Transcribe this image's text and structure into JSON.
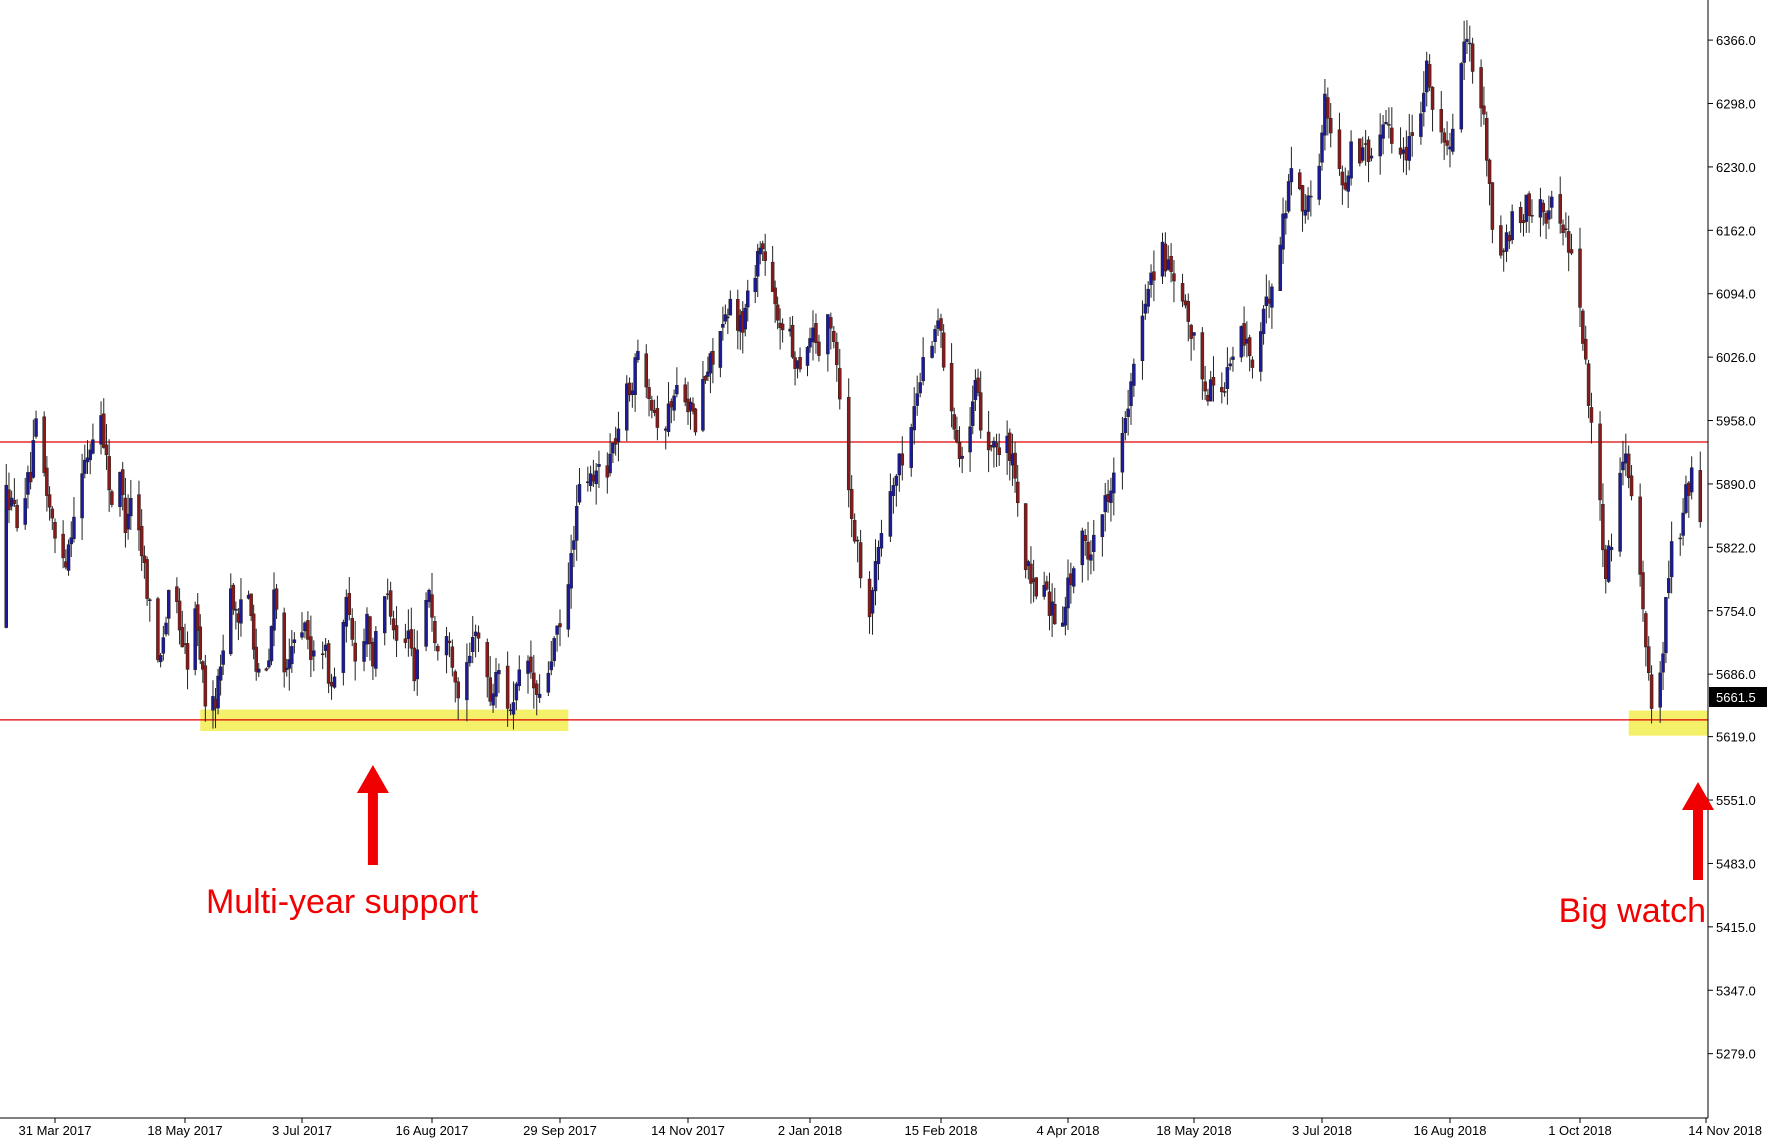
{
  "chart_data": {
    "type": "candlestick",
    "title": "",
    "xlabel": "",
    "ylabel": "",
    "ylim": [
      5210,
      6409
    ],
    "grid": false,
    "y_ticks": [
      "6366.0",
      "6298.0",
      "6230.0",
      "6162.0",
      "6094.0",
      "6026.0",
      "5958.0",
      "5890.0",
      "5822.0",
      "5754.0",
      "5686.0",
      "5619.0",
      "5551.0",
      "5483.0",
      "5415.0",
      "5347.0",
      "5279.0"
    ],
    "x_ticks": [
      "31 Mar 2017",
      "18 May 2017",
      "3 Jul 2017",
      "16 Aug 2017",
      "29 Sep 2017",
      "14 Nov 2017",
      "2 Jan 2018",
      "15 Feb 2018",
      "4 Apr 2018",
      "18 May 2018",
      "3 Jul 2018",
      "16 Aug 2018",
      "1 Oct 2018",
      "14 Nov 2018"
    ],
    "current_price": "5661.5",
    "horizontal_lines": [
      {
        "value": 5935,
        "color": "#e00000"
      },
      {
        "value": 5637,
        "color": "#e00000"
      }
    ],
    "zones": [
      {
        "from_date": "2017-05-24",
        "to_date": "2017-10-02",
        "low": 5625,
        "high": 5648,
        "color": "#f5f06a"
      },
      {
        "from_date": "2018-10-18",
        "to_date": "2018-11-20",
        "low": 5620,
        "high": 5647,
        "color": "#f5f06a"
      }
    ],
    "annotations": [
      {
        "text": "Multi-year support",
        "arrow_date": "2017-07-27",
        "color": "#f00000"
      },
      {
        "text": "Big watch",
        "arrow_date": "2018-11-19",
        "color": "#f00000"
      }
    ],
    "path": [
      [
        "2017-03-01",
        5740
      ],
      [
        "2017-03-06",
        5860
      ],
      [
        "2017-03-09",
        5840
      ],
      [
        "2017-03-13",
        5880
      ],
      [
        "2017-03-17",
        5855
      ],
      [
        "2017-03-22",
        5900
      ],
      [
        "2017-03-24",
        5950
      ],
      [
        "2017-03-27",
        5900
      ],
      [
        "2017-03-31",
        5830
      ],
      [
        "2017-04-04",
        5810
      ],
      [
        "2017-04-07",
        5860
      ],
      [
        "2017-04-11",
        5910
      ],
      [
        "2017-04-13",
        5930
      ],
      [
        "2017-04-17",
        5965
      ],
      [
        "2017-04-19",
        5915
      ],
      [
        "2017-04-21",
        5870
      ],
      [
        "2017-04-24",
        5895
      ],
      [
        "2017-04-26",
        5850
      ],
      [
        "2017-04-28",
        5880
      ],
      [
        "2017-05-01",
        5840
      ],
      [
        "2017-05-03",
        5800
      ],
      [
        "2017-05-05",
        5760
      ],
      [
        "2017-05-08",
        5700
      ],
      [
        "2017-05-11",
        5745
      ],
      [
        "2017-05-13",
        5785
      ],
      [
        "2017-05-15",
        5760
      ],
      [
        "2017-05-17",
        5720
      ],
      [
        "2017-05-19",
        5700
      ],
      [
        "2017-05-22",
        5750
      ],
      [
        "2017-05-24",
        5710
      ],
      [
        "2017-05-26",
        5660
      ],
      [
        "2017-05-29",
        5650
      ],
      [
        "2017-05-31",
        5675
      ],
      [
        "2017-06-02",
        5720
      ],
      [
        "2017-06-05",
        5780
      ],
      [
        "2017-06-08",
        5730
      ],
      [
        "2017-06-10",
        5800
      ],
      [
        "2017-06-13",
        5760
      ],
      [
        "2017-06-15",
        5690
      ],
      [
        "2017-06-18",
        5670
      ],
      [
        "2017-06-20",
        5700
      ],
      [
        "2017-06-22",
        5770
      ],
      [
        "2017-06-25",
        5720
      ],
      [
        "2017-06-27",
        5680
      ],
      [
        "2017-06-29",
        5710
      ],
      [
        "2017-07-01",
        5760
      ],
      [
        "2017-07-04",
        5730
      ],
      [
        "2017-07-06",
        5700
      ],
      [
        "2017-07-08",
        5740
      ],
      [
        "2017-07-11",
        5705
      ],
      [
        "2017-07-13",
        5670
      ],
      [
        "2017-07-15",
        5700
      ],
      [
        "2017-07-18",
        5760
      ],
      [
        "2017-07-20",
        5720
      ],
      [
        "2017-07-22",
        5690
      ],
      [
        "2017-07-25",
        5750
      ],
      [
        "2017-07-27",
        5700
      ],
      [
        "2017-07-29",
        5740
      ],
      [
        "2017-08-01",
        5780
      ],
      [
        "2017-08-03",
        5740
      ],
      [
        "2017-08-05",
        5700
      ],
      [
        "2017-08-08",
        5730
      ],
      [
        "2017-08-10",
        5690
      ],
      [
        "2017-08-12",
        5740
      ],
      [
        "2017-08-15",
        5780
      ],
      [
        "2017-08-17",
        5720
      ],
      [
        "2017-08-19",
        5700
      ],
      [
        "2017-08-22",
        5730
      ],
      [
        "2017-08-24",
        5680
      ],
      [
        "2017-08-26",
        5660
      ],
      [
        "2017-08-29",
        5700
      ],
      [
        "2017-08-31",
        5740
      ],
      [
        "2017-09-02",
        5710
      ],
      [
        "2017-09-05",
        5660
      ],
      [
        "2017-09-08",
        5690
      ],
      [
        "2017-09-10",
        5660
      ],
      [
        "2017-09-13",
        5650
      ],
      [
        "2017-09-15",
        5680
      ],
      [
        "2017-09-18",
        5700
      ],
      [
        "2017-09-20",
        5670
      ],
      [
        "2017-09-22",
        5655
      ],
      [
        "2017-09-25",
        5690
      ],
      [
        "2017-09-27",
        5720
      ],
      [
        "2017-09-30",
        5740
      ],
      [
        "2017-10-02",
        5780
      ],
      [
        "2017-10-04",
        5840
      ],
      [
        "2017-10-06",
        5880
      ],
      [
        "2017-10-08",
        5900
      ],
      [
        "2017-10-11",
        5890
      ],
      [
        "2017-10-13",
        5910
      ],
      [
        "2017-10-15",
        5900
      ],
      [
        "2017-10-18",
        5930
      ],
      [
        "2017-10-20",
        5950
      ],
      [
        "2017-10-22",
        5980
      ],
      [
        "2017-10-25",
        6000
      ],
      [
        "2017-10-27",
        6030
      ],
      [
        "2017-10-29",
        6020
      ],
      [
        "2017-11-01",
        5980
      ],
      [
        "2017-11-03",
        5960
      ],
      [
        "2017-11-05",
        5940
      ],
      [
        "2017-11-08",
        5980
      ],
      [
        "2017-11-10",
        5990
      ],
      [
        "2017-11-12",
        6000
      ],
      [
        "2017-11-15",
        5970
      ],
      [
        "2017-11-17",
        5950
      ],
      [
        "2017-11-19",
        5990
      ],
      [
        "2017-11-22",
        6010
      ],
      [
        "2017-11-24",
        6030
      ],
      [
        "2017-11-26",
        6050
      ],
      [
        "2017-11-29",
        6060
      ],
      [
        "2017-12-01",
        6080
      ],
      [
        "2017-12-03",
        6070
      ],
      [
        "2017-12-06",
        6060
      ],
      [
        "2017-12-08",
        6090
      ],
      [
        "2017-12-10",
        6110
      ],
      [
        "2017-12-13",
        6150
      ],
      [
        "2017-12-15",
        6130
      ],
      [
        "2017-12-18",
        6090
      ],
      [
        "2017-12-20",
        6060
      ],
      [
        "2017-12-23",
        6070
      ],
      [
        "2017-12-26",
        6030
      ],
      [
        "2017-12-28",
        6020
      ],
      [
        "2018-01-01",
        6040
      ],
      [
        "2018-01-03",
        6060
      ],
      [
        "2018-01-05",
        6030
      ],
      [
        "2018-01-08",
        6060
      ],
      [
        "2018-01-10",
        6050
      ],
      [
        "2018-01-12",
        5990
      ],
      [
        "2018-01-15",
        5880
      ],
      [
        "2018-01-17",
        5840
      ],
      [
        "2018-01-19",
        5800
      ],
      [
        "2018-01-22",
        5760
      ],
      [
        "2018-01-24",
        5800
      ],
      [
        "2018-01-26",
        5840
      ],
      [
        "2018-01-29",
        5880
      ],
      [
        "2018-01-31",
        5900
      ],
      [
        "2018-02-02",
        5920
      ],
      [
        "2018-02-05",
        5950
      ],
      [
        "2018-02-07",
        5990
      ],
      [
        "2018-02-09",
        6020
      ],
      [
        "2018-02-12",
        6050
      ],
      [
        "2018-02-14",
        6070
      ],
      [
        "2018-02-16",
        6020
      ],
      [
        "2018-02-19",
        5980
      ],
      [
        "2018-02-21",
        5940
      ],
      [
        "2018-02-23",
        5920
      ],
      [
        "2018-02-26",
        5950
      ],
      [
        "2018-02-28",
        5990
      ],
      [
        "2018-03-02",
        5960
      ],
      [
        "2018-03-05",
        5930
      ],
      [
        "2018-03-07",
        5940
      ],
      [
        "2018-03-09",
        5920
      ],
      [
        "2018-03-12",
        5930
      ],
      [
        "2018-03-14",
        5910
      ],
      [
        "2018-03-16",
        5860
      ],
      [
        "2018-03-19",
        5810
      ],
      [
        "2018-03-21",
        5780
      ],
      [
        "2018-03-23",
        5770
      ],
      [
        "2018-03-26",
        5790
      ],
      [
        "2018-03-28",
        5760
      ],
      [
        "2018-04-01",
        5740
      ],
      [
        "2018-04-04",
        5780
      ],
      [
        "2018-04-06",
        5800
      ],
      [
        "2018-04-09",
        5830
      ],
      [
        "2018-04-11",
        5810
      ],
      [
        "2018-04-13",
        5840
      ],
      [
        "2018-04-16",
        5860
      ],
      [
        "2018-04-18",
        5880
      ],
      [
        "2018-04-20",
        5910
      ],
      [
        "2018-04-23",
        5940
      ],
      [
        "2018-04-25",
        5970
      ],
      [
        "2018-04-27",
        6010
      ],
      [
        "2018-04-30",
        6070
      ],
      [
        "2018-05-02",
        6110
      ],
      [
        "2018-05-04",
        6120
      ],
      [
        "2018-05-07",
        6140
      ],
      [
        "2018-05-09",
        6120
      ],
      [
        "2018-05-11",
        6100
      ],
      [
        "2018-05-14",
        6080
      ],
      [
        "2018-05-16",
        6060
      ],
      [
        "2018-05-18",
        6040
      ],
      [
        "2018-05-21",
        6010
      ],
      [
        "2018-05-23",
        5990
      ],
      [
        "2018-05-25",
        6000
      ],
      [
        "2018-05-28",
        5990
      ],
      [
        "2018-05-30",
        6010
      ],
      [
        "2018-06-01",
        6030
      ],
      [
        "2018-06-04",
        6050
      ],
      [
        "2018-06-06",
        6040
      ],
      [
        "2018-06-08",
        6020
      ],
      [
        "2018-06-11",
        6050
      ],
      [
        "2018-06-13",
        6080
      ],
      [
        "2018-06-15",
        6110
      ],
      [
        "2018-06-18",
        6150
      ],
      [
        "2018-06-20",
        6190
      ],
      [
        "2018-06-22",
        6230
      ],
      [
        "2018-06-25",
        6210
      ],
      [
        "2018-06-27",
        6180
      ],
      [
        "2018-06-29",
        6200
      ],
      [
        "2018-07-02",
        6240
      ],
      [
        "2018-07-04",
        6300
      ],
      [
        "2018-07-06",
        6260
      ],
      [
        "2018-07-09",
        6230
      ],
      [
        "2018-07-11",
        6210
      ],
      [
        "2018-07-13",
        6250
      ],
      [
        "2018-07-16",
        6240
      ],
      [
        "2018-07-18",
        6260
      ],
      [
        "2018-07-20",
        6230
      ],
      [
        "2018-07-23",
        6270
      ],
      [
        "2018-07-25",
        6290
      ],
      [
        "2018-07-27",
        6260
      ],
      [
        "2018-07-30",
        6240
      ],
      [
        "2018-08-01",
        6250
      ],
      [
        "2018-08-03",
        6270
      ],
      [
        "2018-08-06",
        6300
      ],
      [
        "2018-08-08",
        6340
      ],
      [
        "2018-08-10",
        6300
      ],
      [
        "2018-08-13",
        6270
      ],
      [
        "2018-08-15",
        6240
      ],
      [
        "2018-08-17",
        6280
      ],
      [
        "2018-08-20",
        6330
      ],
      [
        "2018-08-22",
        6375
      ],
      [
        "2018-08-24",
        6330
      ],
      [
        "2018-08-27",
        6300
      ],
      [
        "2018-08-29",
        6250
      ],
      [
        "2018-08-31",
        6170
      ],
      [
        "2018-09-03",
        6130
      ],
      [
        "2018-09-05",
        6150
      ],
      [
        "2018-09-07",
        6170
      ],
      [
        "2018-09-10",
        6160
      ],
      [
        "2018-09-12",
        6190
      ],
      [
        "2018-09-14",
        6180
      ],
      [
        "2018-09-17",
        6200
      ],
      [
        "2018-09-19",
        6180
      ],
      [
        "2018-09-21",
        6190
      ],
      [
        "2018-09-24",
        6170
      ],
      [
        "2018-09-26",
        6160
      ],
      [
        "2018-09-28",
        6140
      ],
      [
        "2018-10-01",
        6080
      ],
      [
        "2018-10-03",
        6020
      ],
      [
        "2018-10-05",
        5950
      ],
      [
        "2018-10-08",
        5860
      ],
      [
        "2018-10-10",
        5800
      ],
      [
        "2018-10-12",
        5830
      ],
      [
        "2018-10-15",
        5900
      ],
      [
        "2018-10-17",
        5930
      ],
      [
        "2018-10-19",
        5880
      ],
      [
        "2018-10-22",
        5800
      ],
      [
        "2018-10-24",
        5720
      ],
      [
        "2018-10-26",
        5650
      ],
      [
        "2018-10-29",
        5680
      ],
      [
        "2018-10-31",
        5760
      ],
      [
        "2018-11-02",
        5820
      ],
      [
        "2018-11-05",
        5840
      ],
      [
        "2018-11-07",
        5880
      ],
      [
        "2018-11-09",
        5900
      ],
      [
        "2018-11-12",
        5840
      ],
      [
        "2018-11-14",
        5760
      ],
      [
        "2018-11-16",
        5700
      ],
      [
        "2018-11-19",
        5661.5
      ]
    ]
  }
}
